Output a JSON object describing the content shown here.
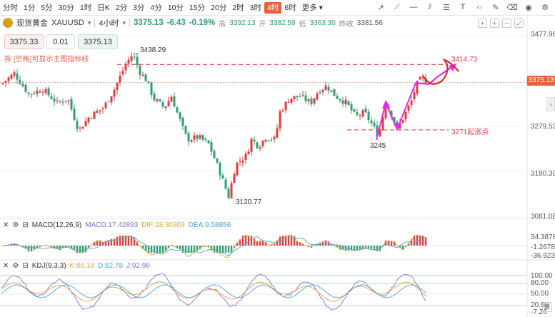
{
  "toolbar": {
    "periods": [
      "分时",
      "1分",
      "5分",
      "30分",
      "1时",
      "日K",
      "2分",
      "3分",
      "4分",
      "10分",
      "15分",
      "20分",
      "2时",
      "3时",
      "4时",
      "6时",
      "更多"
    ],
    "active_period": "4时",
    "tool_icons": [
      "trend-line-icon",
      "ray-icon",
      "horizontal-line-icon",
      "parallel-icon",
      "fibonacci-icon",
      "text-icon",
      "measure-icon",
      "settings-icon",
      "delete-icon",
      "eye-icon",
      "gear-icon"
    ]
  },
  "header": {
    "name": "现货黄金",
    "code": "XAUUSD",
    "timeframe": "4小时",
    "price": "3375.13",
    "change": "-6.43",
    "change_pct": "-0.19%",
    "high_label": "高",
    "high": "3392.13",
    "open_label": "开",
    "open": "3382.59",
    "low_label": "低",
    "low": "3363.30",
    "prev_label": "昨收",
    "prev": "3381.56"
  },
  "trade": {
    "sell": "3375.33",
    "qty": "0.01",
    "buy": "3375.13"
  },
  "hint": "按 [空格]可显示主图指标线",
  "axis": {
    "labels": [
      "3477.98",
      "3279.53",
      "3180.30",
      "3081.08"
    ],
    "current": "3375.13"
  },
  "annotations": {
    "high_mark": "3438.29",
    "low_mark": "3120.77",
    "swing_low": "3245",
    "target": "3414.73",
    "support": "3271起涨点"
  },
  "macd": {
    "title": "MACD(12,26,9)",
    "macd": "MACD:17.42893",
    "dif": "DIF:18.30303",
    "dea": "DEA:9.58856",
    "axis": [
      "34.38784",
      "-1.26784",
      "-36.92352"
    ]
  },
  "kdj": {
    "title": "KDJ(9,3,3)",
    "k": "K:86.18",
    "d": "D:82.78",
    "j": "J:92.98",
    "axis": [
      "100.00",
      "80.00",
      "50.00",
      "20.00",
      "-7.26"
    ]
  },
  "chart_data": {
    "type": "candlestick",
    "ylim": [
      3081.08,
      3477.98
    ],
    "current_price": 3375.13,
    "resistance_line": 3414.73,
    "support_line": 3271,
    "high": 3438.29,
    "low": 3120.77,
    "swing_low": 3245
  },
  "colors": {
    "up": "#e03c3c",
    "down": "#2e9e74",
    "accent": "#e8603c",
    "projection": "#e52be5",
    "dashed": "#e0404a"
  }
}
